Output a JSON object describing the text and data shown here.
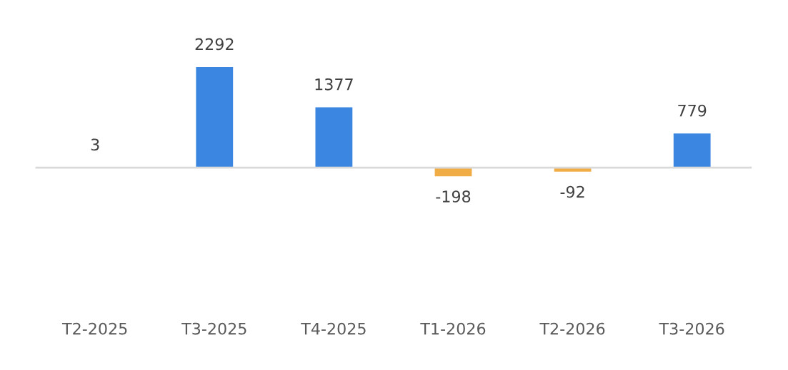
{
  "chart_data": {
    "type": "bar",
    "categories": [
      "T2-2025",
      "T3-2025",
      "T4-2025",
      "T1-2026",
      "T2-2026",
      "T3-2026"
    ],
    "values": [
      3,
      2292,
      1377,
      -198,
      -92,
      779
    ],
    "colors": [
      "#3a86e0",
      "#3a86e0",
      "#3a86e0",
      "#f0ad45",
      "#f0ad45",
      "#3a86e0"
    ],
    "data_labels": true,
    "grid": false,
    "legend": false
  }
}
